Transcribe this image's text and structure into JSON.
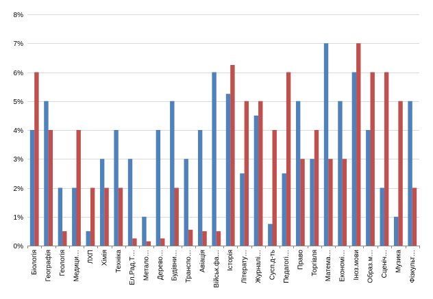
{
  "chart_data": {
    "type": "bar",
    "categories": [
      "Біологія",
      "Географія",
      "Геологія",
      "Медици…",
      "ЛХП",
      "Хімія",
      "Техніка",
      "Ел.Рад.Т…",
      "Метало…",
      "Дерево…",
      "Будівни…",
      "Транспо…",
      "Авіація",
      "Військ.фа…",
      "Історія",
      "Літерату…",
      "Журналі…",
      "Сусп.д-ть",
      "Педагогі…",
      "Право",
      "Торгівля",
      "Матема…",
      "Економі…",
      "Іноз.мови",
      "Образ.м…",
      "Сценіч…",
      "Музика",
      "Фізкульт…"
    ],
    "series": [
      {
        "values": [
          4,
          5,
          2,
          2,
          0.5,
          3,
          4,
          3,
          1,
          4,
          5,
          3,
          4,
          6,
          5.25,
          2.5,
          4.5,
          0.75,
          2.5,
          5,
          3,
          7,
          5,
          6,
          4,
          2,
          1,
          5
        ],
        "color": "#4f81bd"
      },
      {
        "values": [
          6,
          4,
          0.5,
          4,
          2,
          2,
          2,
          0.25,
          0.15,
          0.25,
          2,
          0.55,
          0.5,
          0.5,
          6.25,
          5,
          5,
          4,
          6,
          3,
          4,
          3,
          3,
          7,
          6,
          6,
          5,
          2
        ],
        "color": "#c0504d"
      }
    ],
    "ylim": [
      0,
      8
    ],
    "yticks": [
      "0%",
      "1%",
      "2%",
      "3%",
      "4%",
      "5%",
      "6%",
      "7%",
      "8%"
    ],
    "grid": true,
    "legend": "none",
    "title": "",
    "xlabel": "",
    "ylabel": ""
  }
}
